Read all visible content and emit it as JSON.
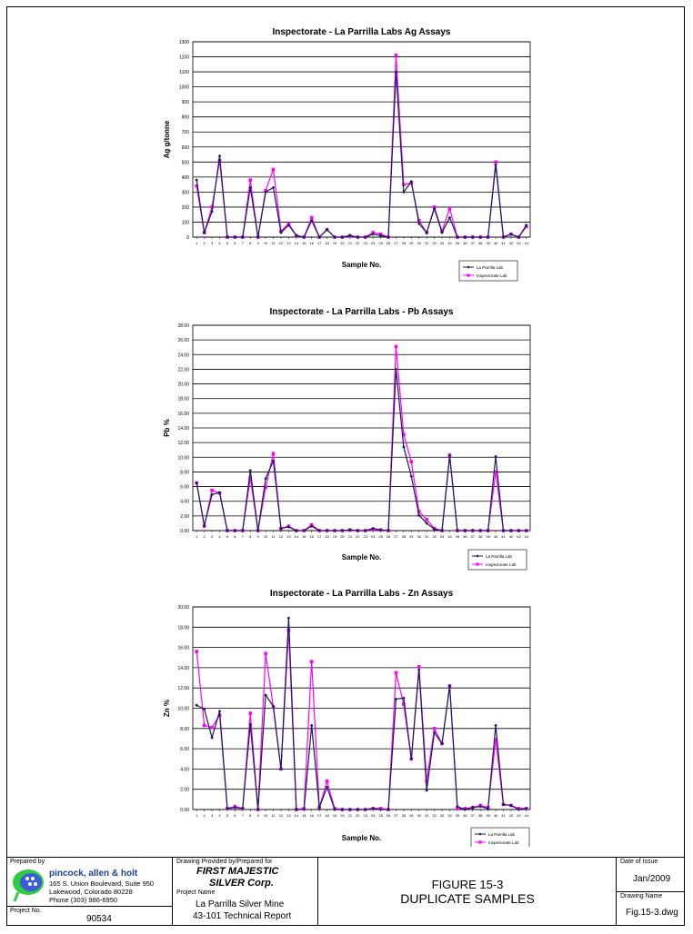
{
  "charts": [
    {
      "type": "line",
      "title": "Inspectorate - La Parrilla Labs Ag Assays",
      "xlabel": "Sample No.",
      "ylabel": "Ag g/tonne",
      "ylim": [
        0,
        1300
      ],
      "yticks": [
        0,
        100,
        200,
        300,
        400,
        500,
        600,
        700,
        800,
        900,
        1000,
        1100,
        1200,
        1300
      ],
      "ytick_labels": [
        "0",
        "100",
        "200",
        "300",
        "400",
        "500",
        "600",
        "700",
        "800",
        "900",
        "1000",
        "1100",
        "1200",
        "1300"
      ],
      "categories": [
        "1",
        "2",
        "3",
        "4",
        "5",
        "6",
        "7",
        "8",
        "9",
        "10",
        "11",
        "12",
        "13",
        "14",
        "15",
        "16",
        "17",
        "18",
        "19",
        "20",
        "21",
        "22",
        "23",
        "24",
        "25",
        "26",
        "27",
        "28",
        "29",
        "30",
        "31",
        "32",
        "33",
        "34",
        "35",
        "36",
        "37",
        "38",
        "39",
        "40",
        "41",
        "42",
        "43",
        "44"
      ],
      "legend": [
        "La Parrilla Lab",
        "Inspectorate Lab"
      ],
      "series": [
        {
          "name": "La Parrilla Lab",
          "values": [
            380,
            30,
            170,
            540,
            0,
            0,
            0,
            330,
            0,
            300,
            330,
            30,
            80,
            10,
            0,
            110,
            0,
            50,
            0,
            0,
            10,
            0,
            0,
            20,
            10,
            0,
            1100,
            300,
            370,
            90,
            30,
            190,
            30,
            130,
            0,
            0,
            0,
            0,
            0,
            480,
            0,
            20,
            0,
            80
          ]
        },
        {
          "name": "Inspectorate Lab",
          "values": [
            340,
            30,
            200,
            510,
            0,
            0,
            0,
            380,
            0,
            310,
            450,
            40,
            90,
            10,
            0,
            130,
            0,
            50,
            0,
            0,
            10,
            0,
            0,
            30,
            20,
            0,
            1210,
            350,
            360,
            110,
            30,
            200,
            40,
            190,
            0,
            0,
            0,
            0,
            0,
            500,
            0,
            20,
            0,
            70
          ]
        }
      ]
    },
    {
      "type": "line",
      "title": "Inspectorate - La Parrilla Labs - Pb Assays",
      "xlabel": "Sample No.",
      "ylabel": "Pb %",
      "ylim": [
        0,
        28
      ],
      "yticks": [
        0,
        2,
        4,
        6,
        8,
        10,
        12,
        14,
        16,
        18,
        20,
        22,
        24,
        26,
        28
      ],
      "ytick_labels": [
        "0.00",
        "2.00",
        "4.00",
        "6.00",
        "8.00",
        "10.00",
        "12.00",
        "14.00",
        "16.00",
        "18.00",
        "20.00",
        "22.00",
        "24.00",
        "26.00",
        "28.00"
      ],
      "categories": [
        "1",
        "2",
        "3",
        "4",
        "5",
        "6",
        "7",
        "8",
        "9",
        "10",
        "11",
        "12",
        "13",
        "14",
        "15",
        "16",
        "17",
        "18",
        "19",
        "20",
        "21",
        "22",
        "23",
        "24",
        "25",
        "26",
        "27",
        "28",
        "29",
        "30",
        "31",
        "32",
        "33",
        "34",
        "35",
        "36",
        "37",
        "38",
        "39",
        "40",
        "41",
        "42",
        "43",
        "44"
      ],
      "legend": [
        "La Parrilla Lab",
        "Inspectorate Lab"
      ],
      "series": [
        {
          "name": "La Parrilla Lab",
          "values": [
            6.5,
            0.7,
            4.9,
            5.2,
            0,
            0,
            0,
            8.2,
            0,
            7.1,
            9.5,
            0.3,
            0.5,
            0,
            0,
            0.6,
            0,
            0,
            0,
            0,
            0.1,
            0,
            0,
            0.3,
            0.1,
            0,
            22.0,
            11.4,
            7.4,
            2.1,
            1.0,
            0.2,
            0,
            10.2,
            0,
            0,
            0,
            0,
            0,
            10.1,
            0,
            0,
            0,
            0
          ]
        },
        {
          "name": "Inspectorate Lab",
          "values": [
            6.5,
            0.6,
            5.5,
            5.1,
            0,
            0,
            0,
            7.2,
            0,
            5.9,
            10.5,
            0.3,
            0.6,
            0,
            0,
            0.8,
            0,
            0,
            0,
            0,
            0.1,
            0,
            0,
            0.2,
            0.1,
            0,
            25.1,
            13.1,
            9.4,
            2.6,
            1.5,
            0.3,
            0,
            10.3,
            0,
            0,
            0,
            0,
            0,
            8.0,
            0,
            0,
            0,
            0
          ]
        }
      ]
    },
    {
      "type": "line",
      "title": "Inspectorate - La Parrilla Labs - Zn Assays",
      "xlabel": "Sample No.",
      "ylabel": "Zn %",
      "ylim": [
        0,
        20
      ],
      "yticks": [
        0,
        2,
        4,
        6,
        8,
        10,
        12,
        14,
        16,
        18,
        20
      ],
      "ytick_labels": [
        "0.00",
        "2.00",
        "4.00",
        "6.00",
        "8.00",
        "10.00",
        "12.00",
        "14.00",
        "16.00",
        "18.00",
        "20.00"
      ],
      "categories": [
        "1",
        "2",
        "3",
        "4",
        "5",
        "6",
        "7",
        "8",
        "9",
        "10",
        "11",
        "12",
        "13",
        "14",
        "15",
        "16",
        "17",
        "18",
        "19",
        "20",
        "21",
        "22",
        "23",
        "24",
        "25",
        "26",
        "27",
        "28",
        "29",
        "30",
        "31",
        "32",
        "33",
        "34",
        "35",
        "36",
        "37",
        "38",
        "39",
        "40",
        "41",
        "42",
        "43",
        "44"
      ],
      "legend": [
        "La Parrilla Lab",
        "Inspectorate Lab"
      ],
      "series": [
        {
          "name": "La Parrilla Lab",
          "values": [
            10.3,
            9.9,
            7.1,
            9.7,
            0.1,
            0.2,
            0.1,
            8.4,
            0,
            11.3,
            10.2,
            4.0,
            18.9,
            0,
            0,
            8.3,
            0.2,
            2.2,
            0,
            0,
            0,
            0,
            0,
            0.1,
            0,
            0,
            10.9,
            11.0,
            5.0,
            13.8,
            1.9,
            7.6,
            6.5,
            12.2,
            0.3,
            0,
            0.2,
            0.3,
            0.1,
            8.3,
            0.5,
            0.4,
            0,
            0.1
          ]
        },
        {
          "name": "Inspectorate Lab",
          "values": [
            15.6,
            8.3,
            8.1,
            9.3,
            0.1,
            0.3,
            0.1,
            9.5,
            0,
            15.4,
            10.1,
            4.0,
            17.7,
            0,
            0.1,
            14.6,
            0.2,
            2.8,
            0.1,
            0,
            0,
            0,
            0,
            0.1,
            0.1,
            0,
            13.5,
            10.4,
            5.0,
            14.1,
            2.8,
            8.0,
            6.5,
            12.2,
            0.1,
            0.1,
            0.2,
            0.4,
            0.2,
            6.9,
            0.5,
            0.4,
            0.1,
            0.1
          ]
        }
      ]
    }
  ],
  "series_colors": {
    "parrilla": "#1a1a5e",
    "inspectorate": "#ff00ff"
  },
  "title_block": {
    "prepared_by_label": "Prepared by",
    "company_name": "pincock, allen & holt",
    "address1": "165 S. Union Boulevard, Suite 950",
    "address2": "Lakewood, Colorado 80228",
    "phone": "Phone (303) 986-6950",
    "project_no_label": "Project No.",
    "project_no": "90534",
    "drawing_provided_label": "Drawing Provided by/Prepared for",
    "client_line1": "FIRST MAJESTIC",
    "client_line2": "SILVER Corp.",
    "project_name_label": "Project Name",
    "project_name1": "La Parrilla Silver Mine",
    "project_name2": "43-101 Technical Report",
    "figure_no": "FIGURE 15-3",
    "figure_title": "DUPLICATE SAMPLES",
    "date_label": "Date of Issue",
    "date": "Jan/2009",
    "drawing_name_label": "Drawing Name",
    "drawing_name": "Fig.15-3.dwg"
  }
}
